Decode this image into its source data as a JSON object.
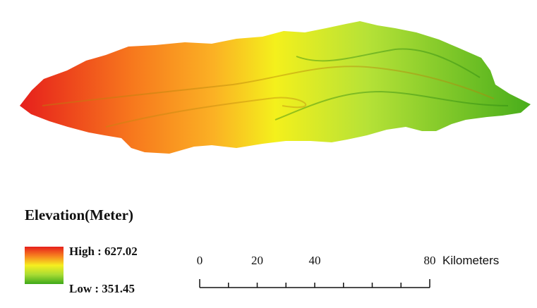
{
  "legend": {
    "title": "Elevation(Meter)",
    "high_label": "High : 627.02",
    "low_label": "Low : 351.45"
  },
  "scale_bar": {
    "ticks": [
      0,
      20,
      40,
      80
    ],
    "unit": "Kilometers"
  }
}
